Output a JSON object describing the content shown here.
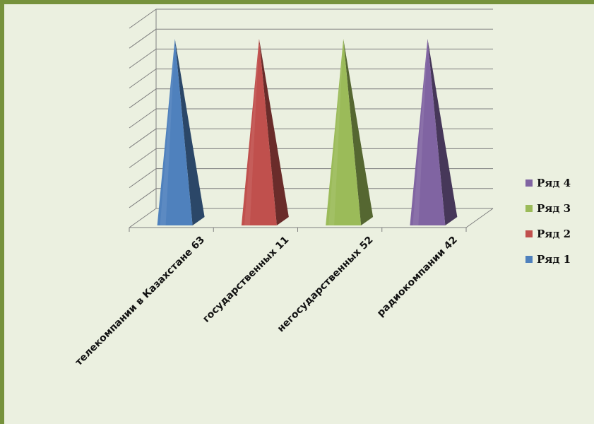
{
  "chart_data": {
    "type": "bar",
    "style": "3d-pyramid",
    "categories": [
      "телекомпании  в Казахстане 63",
      "государственных 11",
      "негосударственных 52",
      "радиокомпании 42"
    ],
    "series": [
      {
        "name": "Ряд 1",
        "color": "#4f81bd"
      },
      {
        "name": "Ряд 2",
        "color": "#c0504d"
      },
      {
        "name": "Ряд 3",
        "color": "#9bbb59"
      },
      {
        "name": "Ряд 4",
        "color": "#8064a2"
      }
    ],
    "bars": [
      {
        "category": "телекомпании  в Казахстане 63",
        "series": "Ряд 1",
        "value": 1
      },
      {
        "category": "государственных 11",
        "series": "Ряд 2",
        "value": 1
      },
      {
        "category": "негосударственных 52",
        "series": "Ряд 3",
        "value": 1
      },
      {
        "category": "радиокомпании 42",
        "series": "Ряд 4",
        "value": 1
      }
    ],
    "ylim": [
      0,
      1
    ],
    "grid": true,
    "y_tick_labels_shown": false,
    "legend_position": "right",
    "legend_order": [
      "Ряд 4",
      "Ряд 3",
      "Ряд 2",
      "Ряд 1"
    ]
  },
  "colors": {
    "background": "#ebf0e0",
    "frame": "#76923c",
    "gridline": "#7f7f7f"
  }
}
